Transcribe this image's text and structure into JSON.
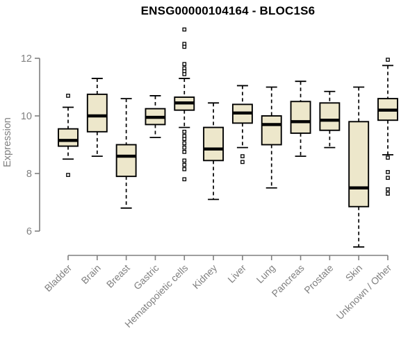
{
  "figure": {
    "title": "ENSG00000104164 - BLOC1S6"
  },
  "chart_data": {
    "type": "boxplot",
    "title": "ENSG00000104164 - BLOC1S6",
    "xlabel": "",
    "ylabel": "Expression",
    "ylim": [
      5.1,
      13.1
    ],
    "yticks": [
      6,
      8,
      10,
      12
    ],
    "grid": false,
    "legend": "none",
    "colors": {
      "box_fill": "#EDE7CB",
      "box_stroke": "#000000",
      "median": "#000000",
      "whisker": "#000000",
      "outlier_stroke": "#000000",
      "axis": "#7F7F7F",
      "tick_label": "#808080",
      "title": "#000000",
      "background": "#FFFFFF"
    },
    "categories": [
      "Bladder",
      "Brain",
      "Breast",
      "Gastric",
      "Hematopoietic cells",
      "Kidney",
      "Liver",
      "Lung",
      "Pancreas",
      "Prostate",
      "Skin",
      "Unknown / Other"
    ],
    "series": [
      {
        "name": "Bladder",
        "whislo": 8.5,
        "q1": 8.95,
        "med": 9.15,
        "q3": 9.55,
        "whishi": 10.3,
        "outliers": [
          10.7,
          7.95
        ]
      },
      {
        "name": "Brain",
        "whislo": 8.6,
        "q1": 9.45,
        "med": 10.0,
        "q3": 10.75,
        "whishi": 11.3,
        "outliers": []
      },
      {
        "name": "Breast",
        "whislo": 6.8,
        "q1": 7.9,
        "med": 8.6,
        "q3": 9.0,
        "whishi": 10.6,
        "outliers": []
      },
      {
        "name": "Gastric",
        "whislo": 9.25,
        "q1": 9.7,
        "med": 9.95,
        "q3": 10.25,
        "whishi": 10.7,
        "outliers": []
      },
      {
        "name": "Hematopoietic cells",
        "whislo": 9.6,
        "q1": 10.2,
        "med": 10.45,
        "q3": 10.65,
        "whishi": 11.3,
        "outliers": [
          13.0,
          12.5,
          12.4,
          11.8,
          11.65,
          11.55,
          11.45,
          9.45,
          9.3,
          9.2,
          9.05,
          8.9,
          8.75,
          8.45,
          8.3,
          8.15,
          7.8
        ]
      },
      {
        "name": "Kidney",
        "whislo": 7.1,
        "q1": 8.45,
        "med": 8.85,
        "q3": 9.6,
        "whishi": 10.45,
        "outliers": []
      },
      {
        "name": "Liver",
        "whislo": 8.9,
        "q1": 9.75,
        "med": 10.1,
        "q3": 10.4,
        "whishi": 11.05,
        "outliers": [
          8.6,
          8.4
        ]
      },
      {
        "name": "Lung",
        "whislo": 7.5,
        "q1": 9.0,
        "med": 9.7,
        "q3": 10.0,
        "whishi": 11.0,
        "outliers": []
      },
      {
        "name": "Pancreas",
        "whislo": 8.6,
        "q1": 9.4,
        "med": 9.8,
        "q3": 10.5,
        "whishi": 11.2,
        "outliers": []
      },
      {
        "name": "Prostate",
        "whislo": 8.9,
        "q1": 9.5,
        "med": 9.85,
        "q3": 10.45,
        "whishi": 10.85,
        "outliers": []
      },
      {
        "name": "Skin",
        "whislo": 5.45,
        "q1": 6.85,
        "med": 7.5,
        "q3": 9.8,
        "whishi": 11.0,
        "outliers": []
      },
      {
        "name": "Unknown / Other",
        "whislo": 8.65,
        "q1": 9.85,
        "med": 10.2,
        "q3": 10.6,
        "whishi": 11.75,
        "outliers": [
          11.95,
          8.55,
          8.05,
          7.85,
          7.45,
          7.3
        ]
      }
    ]
  }
}
